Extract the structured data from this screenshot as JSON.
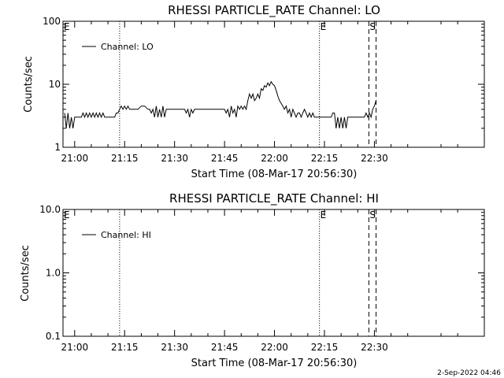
{
  "footer_stamp": "2-Sep-2022 04:46",
  "chart_data": [
    {
      "type": "line",
      "title": "RHESSI PARTICLE_RATE Channel: LO",
      "xlabel": "Start Time (08-Mar-17 20:56:30)",
      "ylabel": "Counts/sec",
      "yscale": "log",
      "ylim": [
        1,
        100
      ],
      "xlim": [
        "20:56:30",
        "23:03:00"
      ],
      "x_ticks": [
        "21:00",
        "21:15",
        "21:30",
        "21:45",
        "22:00",
        "22:15",
        "22:30"
      ],
      "y_ticks": [
        "1",
        "10",
        "100"
      ],
      "legend": {
        "placement": "top-left",
        "entries": [
          "Channel: LO"
        ]
      },
      "vertical_markers": [
        {
          "time": "20:56:30",
          "style": "dotted",
          "label": "E"
        },
        {
          "time": "21:13:30",
          "style": "dotted",
          "label": ""
        },
        {
          "time": "22:13:30",
          "style": "dotted",
          "label": "E"
        },
        {
          "time": "22:28:20",
          "style": "dashed",
          "label": "S"
        },
        {
          "time": "22:30:30",
          "style": "dashed",
          "label": ""
        }
      ],
      "series": [
        {
          "name": "Channel: LO",
          "x": [
            "20:57:00",
            "20:57:30",
            "20:58:00",
            "20:58:30",
            "20:59:00",
            "20:59:30",
            "21:00:00",
            "21:01:00",
            "21:02:00",
            "21:02:30",
            "21:03:00",
            "21:03:30",
            "21:04:00",
            "21:04:30",
            "21:05:00",
            "21:05:30",
            "21:06:00",
            "21:06:30",
            "21:07:00",
            "21:07:30",
            "21:08:00",
            "21:08:30",
            "21:09:00",
            "21:10:00",
            "21:11:00",
            "21:12:00",
            "21:12:30",
            "21:13:00",
            "21:13:30",
            "21:14:00",
            "21:14:30",
            "21:15:00",
            "21:15:30",
            "21:16:00",
            "21:16:30",
            "21:17:00",
            "21:18:00",
            "21:19:00",
            "21:20:00",
            "21:21:00",
            "21:22:00",
            "21:22:30",
            "21:23:00",
            "21:23:30",
            "21:24:00",
            "21:24:30",
            "21:25:00",
            "21:25:30",
            "21:26:00",
            "21:26:30",
            "21:27:00",
            "21:27:30",
            "21:28:00",
            "21:29:00",
            "21:30:00",
            "21:31:00",
            "21:32:00",
            "21:33:00",
            "21:33:30",
            "21:34:00",
            "21:34:30",
            "21:35:00",
            "21:35:30",
            "21:36:00",
            "21:37:00",
            "21:38:00",
            "21:39:00",
            "21:40:00",
            "21:41:00",
            "21:42:00",
            "21:43:00",
            "21:44:00",
            "21:45:00",
            "21:45:30",
            "21:46:00",
            "21:46:30",
            "21:47:00",
            "21:47:30",
            "21:48:00",
            "21:48:30",
            "21:49:00",
            "21:49:30",
            "21:50:00",
            "21:50:30",
            "21:51:00",
            "21:51:30",
            "21:52:00",
            "21:52:30",
            "21:53:00",
            "21:53:30",
            "21:54:00",
            "21:54:30",
            "21:55:00",
            "21:55:30",
            "21:56:00",
            "21:56:30",
            "21:57:00",
            "21:57:30",
            "21:58:00",
            "21:58:30",
            "21:59:00",
            "21:59:30",
            "22:00:00",
            "22:00:30",
            "22:01:00",
            "22:01:30",
            "22:02:00",
            "22:02:30",
            "22:03:00",
            "22:03:30",
            "22:04:00",
            "22:04:30",
            "22:05:00",
            "22:05:30",
            "22:06:00",
            "22:06:30",
            "22:07:00",
            "22:07:30",
            "22:08:00",
            "22:08:30",
            "22:09:00",
            "22:09:30",
            "22:10:00",
            "22:10:30",
            "22:11:00",
            "22:11:30",
            "22:12:00",
            "22:12:30",
            "22:13:00",
            "22:13:30",
            "22:14:00",
            "22:15:00",
            "22:16:00",
            "22:17:00",
            "22:17:30",
            "22:18:00",
            "22:18:30",
            "22:19:00",
            "22:19:30",
            "22:20:00",
            "22:20:30",
            "22:21:00",
            "22:21:30",
            "22:22:00",
            "22:23:00",
            "22:24:00",
            "22:25:00",
            "22:26:00",
            "22:27:00",
            "22:27:30",
            "22:28:00",
            "22:28:30",
            "22:29:00",
            "22:29:30",
            "22:30:00",
            "22:30:30"
          ],
          "y": [
            3.5,
            2.0,
            3.5,
            2.0,
            3.0,
            2.0,
            3.0,
            3.0,
            3.0,
            3.5,
            3.0,
            3.5,
            3.0,
            3.5,
            3.0,
            3.5,
            3.0,
            3.5,
            3.0,
            3.5,
            3.0,
            3.5,
            3.0,
            3.0,
            3.0,
            3.0,
            3.5,
            3.5,
            4.0,
            4.5,
            4.0,
            4.5,
            4.0,
            4.5,
            4.0,
            4.0,
            4.0,
            4.0,
            4.5,
            4.5,
            4.0,
            4.0,
            3.5,
            4.0,
            3.0,
            4.5,
            3.0,
            4.0,
            3.0,
            4.5,
            3.0,
            4.0,
            4.0,
            4.0,
            4.0,
            4.0,
            4.0,
            4.0,
            3.5,
            4.0,
            3.0,
            4.0,
            3.5,
            4.0,
            4.0,
            4.0,
            4.0,
            4.0,
            4.0,
            4.0,
            4.0,
            4.0,
            4.0,
            3.5,
            4.0,
            3.0,
            4.5,
            3.5,
            4.0,
            3.0,
            4.5,
            4.0,
            4.5,
            4.0,
            4.5,
            4.0,
            5.5,
            7.0,
            6.0,
            7.0,
            5.5,
            6.0,
            7.0,
            6.0,
            8.5,
            8.0,
            9.5,
            9.0,
            10.5,
            9.5,
            11.0,
            10.0,
            9.5,
            8.0,
            6.5,
            5.5,
            5.0,
            4.5,
            4.0,
            4.5,
            3.5,
            4.0,
            3.0,
            4.0,
            3.5,
            3.0,
            3.5,
            3.5,
            3.0,
            3.5,
            4.0,
            3.5,
            3.0,
            3.5,
            3.0,
            3.5,
            3.0,
            3.0,
            3.0,
            3.0,
            3.0,
            3.0,
            3.0,
            3.0,
            3.5,
            3.5,
            2.0,
            3.0,
            2.0,
            3.0,
            2.0,
            3.0,
            2.0,
            3.0,
            3.0,
            3.0,
            3.0,
            3.0,
            3.0,
            3.5,
            3.0,
            3.5,
            3.0,
            4.0,
            4.5,
            5.5
          ]
        }
      ]
    },
    {
      "type": "line",
      "title": "RHESSI PARTICLE_RATE Channel: HI",
      "xlabel": "Start Time (08-Mar-17 20:56:30)",
      "ylabel": "Counts/sec",
      "yscale": "log",
      "ylim": [
        0.1,
        10
      ],
      "xlim": [
        "20:56:30",
        "23:03:00"
      ],
      "x_ticks": [
        "21:00",
        "21:15",
        "21:30",
        "21:45",
        "22:00",
        "22:15",
        "22:30"
      ],
      "y_ticks": [
        "0.1",
        "1.0",
        "10.0"
      ],
      "legend": {
        "placement": "top-left",
        "entries": [
          "Channel: HI"
        ]
      },
      "vertical_markers": [
        {
          "time": "20:56:30",
          "style": "dotted",
          "label": "E"
        },
        {
          "time": "21:13:30",
          "style": "dotted",
          "label": ""
        },
        {
          "time": "22:13:30",
          "style": "dotted",
          "label": "E"
        },
        {
          "time": "22:28:20",
          "style": "dashed",
          "label": "S"
        },
        {
          "time": "22:30:30",
          "style": "dashed",
          "label": ""
        }
      ],
      "series": []
    }
  ]
}
